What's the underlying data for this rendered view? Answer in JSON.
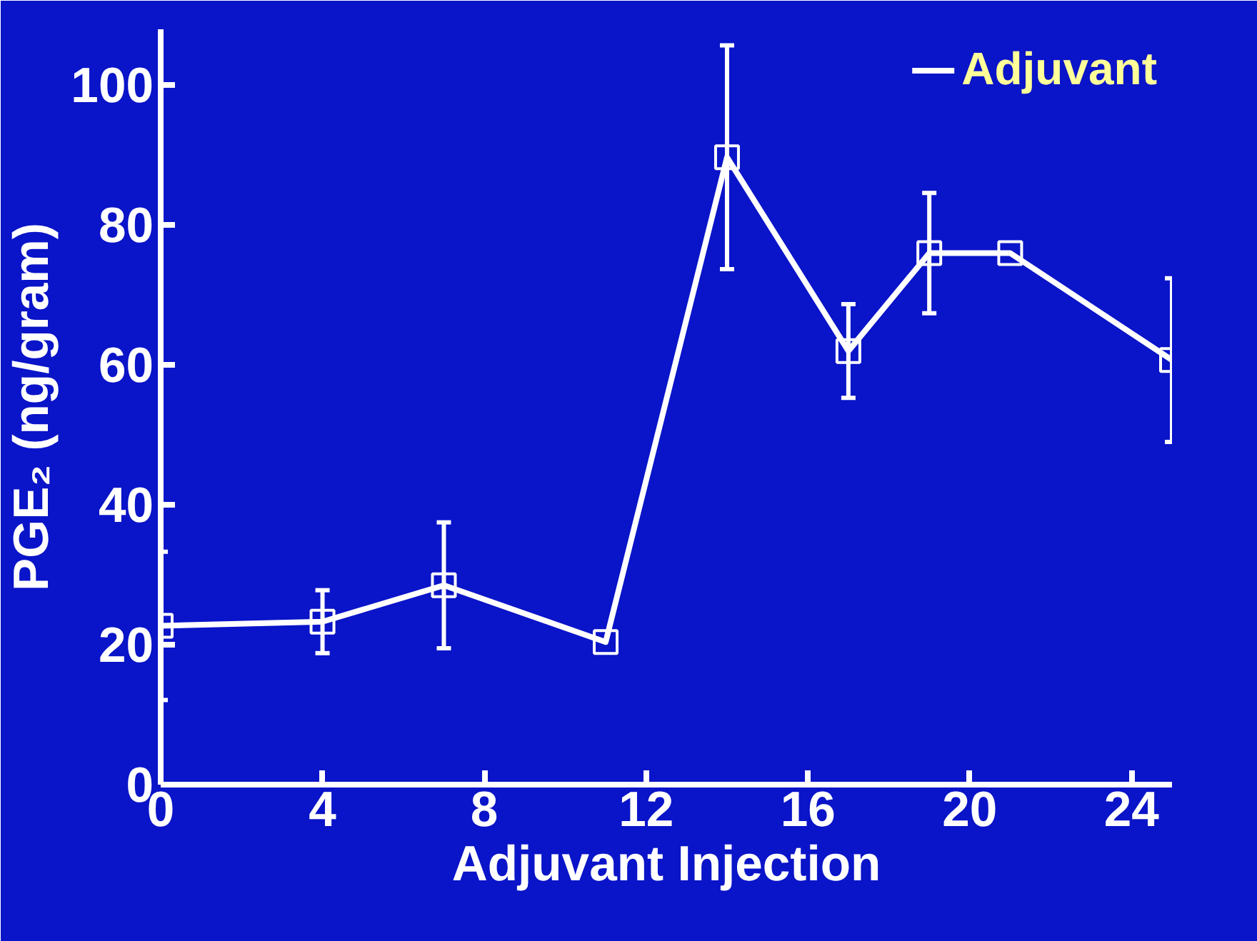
{
  "chart_data": {
    "type": "line",
    "xlabel": "Adjuvant Injection",
    "ylabel": "PGE₂ (ng/gram)",
    "x": [
      0,
      4,
      7,
      11,
      14,
      17,
      19,
      21,
      25
    ],
    "series": [
      {
        "name": "Adjuvant",
        "color": "#ffffff",
        "values": [
          22.7,
          23.3,
          28.5,
          20.4,
          89.7,
          62,
          76,
          76,
          60.7
        ],
        "errors": [
          10.6,
          4.5,
          9,
          null,
          16,
          6.7,
          8.6,
          null,
          11.7
        ]
      }
    ],
    "xlim": [
      0,
      25
    ],
    "ylim": [
      0,
      108
    ],
    "xticks": [
      0,
      4,
      8,
      12,
      16,
      20,
      24
    ],
    "yticks": [
      0,
      20,
      40,
      60,
      80,
      100
    ],
    "marker": "square",
    "grid": false,
    "legend": "top right"
  }
}
